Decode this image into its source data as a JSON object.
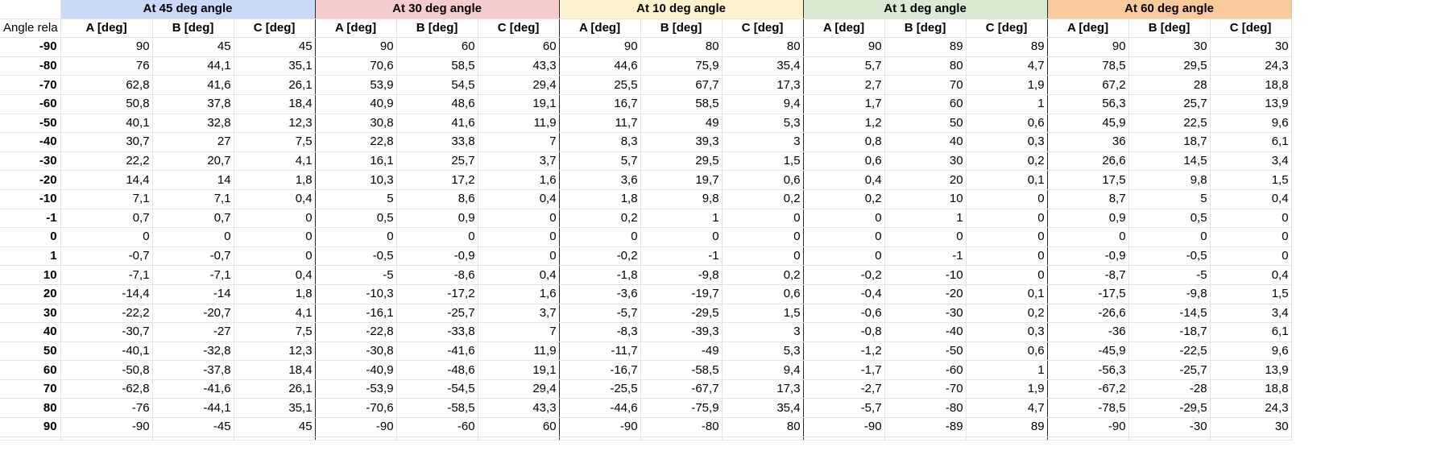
{
  "corner_label": "Angle rela",
  "groups": [
    {
      "title": "At 45 deg angle",
      "color": "#c9daf8"
    },
    {
      "title": "At 30 deg angle",
      "color": "#f4cccc"
    },
    {
      "title": "At 10 deg angle",
      "color": "#fff2cc"
    },
    {
      "title": "At 1 deg angle",
      "color": "#d9ead3"
    },
    {
      "title": "At 60 deg angle",
      "color": "#f9cb9c"
    }
  ],
  "column_labels": [
    "A [deg]",
    "B [deg]",
    "C [deg]"
  ],
  "rows": [
    {
      "angle": "-90",
      "values": [
        [
          "90",
          "45",
          "45"
        ],
        [
          "90",
          "60",
          "60"
        ],
        [
          "90",
          "80",
          "80"
        ],
        [
          "90",
          "89",
          "89"
        ],
        [
          "90",
          "30",
          "30"
        ]
      ]
    },
    {
      "angle": "-80",
      "values": [
        [
          "76",
          "44,1",
          "35,1"
        ],
        [
          "70,6",
          "58,5",
          "43,3"
        ],
        [
          "44,6",
          "75,9",
          "35,4"
        ],
        [
          "5,7",
          "80",
          "4,7"
        ],
        [
          "78,5",
          "29,5",
          "24,3"
        ]
      ]
    },
    {
      "angle": "-70",
      "values": [
        [
          "62,8",
          "41,6",
          "26,1"
        ],
        [
          "53,9",
          "54,5",
          "29,4"
        ],
        [
          "25,5",
          "67,7",
          "17,3"
        ],
        [
          "2,7",
          "70",
          "1,9"
        ],
        [
          "67,2",
          "28",
          "18,8"
        ]
      ]
    },
    {
      "angle": "-60",
      "values": [
        [
          "50,8",
          "37,8",
          "18,4"
        ],
        [
          "40,9",
          "48,6",
          "19,1"
        ],
        [
          "16,7",
          "58,5",
          "9,4"
        ],
        [
          "1,7",
          "60",
          "1"
        ],
        [
          "56,3",
          "25,7",
          "13,9"
        ]
      ]
    },
    {
      "angle": "-50",
      "values": [
        [
          "40,1",
          "32,8",
          "12,3"
        ],
        [
          "30,8",
          "41,6",
          "11,9"
        ],
        [
          "11,7",
          "49",
          "5,3"
        ],
        [
          "1,2",
          "50",
          "0,6"
        ],
        [
          "45,9",
          "22,5",
          "9,6"
        ]
      ]
    },
    {
      "angle": "-40",
      "values": [
        [
          "30,7",
          "27",
          "7,5"
        ],
        [
          "22,8",
          "33,8",
          "7"
        ],
        [
          "8,3",
          "39,3",
          "3"
        ],
        [
          "0,8",
          "40",
          "0,3"
        ],
        [
          "36",
          "18,7",
          "6,1"
        ]
      ]
    },
    {
      "angle": "-30",
      "values": [
        [
          "22,2",
          "20,7",
          "4,1"
        ],
        [
          "16,1",
          "25,7",
          "3,7"
        ],
        [
          "5,7",
          "29,5",
          "1,5"
        ],
        [
          "0,6",
          "30",
          "0,2"
        ],
        [
          "26,6",
          "14,5",
          "3,4"
        ]
      ]
    },
    {
      "angle": "-20",
      "values": [
        [
          "14,4",
          "14",
          "1,8"
        ],
        [
          "10,3",
          "17,2",
          "1,6"
        ],
        [
          "3,6",
          "19,7",
          "0,6"
        ],
        [
          "0,4",
          "20",
          "0,1"
        ],
        [
          "17,5",
          "9,8",
          "1,5"
        ]
      ]
    },
    {
      "angle": "-10",
      "values": [
        [
          "7,1",
          "7,1",
          "0,4"
        ],
        [
          "5",
          "8,6",
          "0,4"
        ],
        [
          "1,8",
          "9,8",
          "0,2"
        ],
        [
          "0,2",
          "10",
          "0"
        ],
        [
          "8,7",
          "5",
          "0,4"
        ]
      ]
    },
    {
      "angle": "-1",
      "values": [
        [
          "0,7",
          "0,7",
          "0"
        ],
        [
          "0,5",
          "0,9",
          "0"
        ],
        [
          "0,2",
          "1",
          "0"
        ],
        [
          "0",
          "1",
          "0"
        ],
        [
          "0,9",
          "0,5",
          "0"
        ]
      ]
    },
    {
      "angle": "0",
      "values": [
        [
          "0",
          "0",
          "0"
        ],
        [
          "0",
          "0",
          "0"
        ],
        [
          "0",
          "0",
          "0"
        ],
        [
          "0",
          "0",
          "0"
        ],
        [
          "0",
          "0",
          "0"
        ]
      ]
    },
    {
      "angle": "1",
      "values": [
        [
          "-0,7",
          "-0,7",
          "0"
        ],
        [
          "-0,5",
          "-0,9",
          "0"
        ],
        [
          "-0,2",
          "-1",
          "0"
        ],
        [
          "0",
          "-1",
          "0"
        ],
        [
          "-0,9",
          "-0,5",
          "0"
        ]
      ]
    },
    {
      "angle": "10",
      "values": [
        [
          "-7,1",
          "-7,1",
          "0,4"
        ],
        [
          "-5",
          "-8,6",
          "0,4"
        ],
        [
          "-1,8",
          "-9,8",
          "0,2"
        ],
        [
          "-0,2",
          "-10",
          "0"
        ],
        [
          "-8,7",
          "-5",
          "0,4"
        ]
      ]
    },
    {
      "angle": "20",
      "values": [
        [
          "-14,4",
          "-14",
          "1,8"
        ],
        [
          "-10,3",
          "-17,2",
          "1,6"
        ],
        [
          "-3,6",
          "-19,7",
          "0,6"
        ],
        [
          "-0,4",
          "-20",
          "0,1"
        ],
        [
          "-17,5",
          "-9,8",
          "1,5"
        ]
      ]
    },
    {
      "angle": "30",
      "values": [
        [
          "-22,2",
          "-20,7",
          "4,1"
        ],
        [
          "-16,1",
          "-25,7",
          "3,7"
        ],
        [
          "-5,7",
          "-29,5",
          "1,5"
        ],
        [
          "-0,6",
          "-30",
          "0,2"
        ],
        [
          "-26,6",
          "-14,5",
          "3,4"
        ]
      ]
    },
    {
      "angle": "40",
      "values": [
        [
          "-30,7",
          "-27",
          "7,5"
        ],
        [
          "-22,8",
          "-33,8",
          "7"
        ],
        [
          "-8,3",
          "-39,3",
          "3"
        ],
        [
          "-0,8",
          "-40",
          "0,3"
        ],
        [
          "-36",
          "-18,7",
          "6,1"
        ]
      ]
    },
    {
      "angle": "50",
      "values": [
        [
          "-40,1",
          "-32,8",
          "12,3"
        ],
        [
          "-30,8",
          "-41,6",
          "11,9"
        ],
        [
          "-11,7",
          "-49",
          "5,3"
        ],
        [
          "-1,2",
          "-50",
          "0,6"
        ],
        [
          "-45,9",
          "-22,5",
          "9,6"
        ]
      ]
    },
    {
      "angle": "60",
      "values": [
        [
          "-50,8",
          "-37,8",
          "18,4"
        ],
        [
          "-40,9",
          "-48,6",
          "19,1"
        ],
        [
          "-16,7",
          "-58,5",
          "9,4"
        ],
        [
          "-1,7",
          "-60",
          "1"
        ],
        [
          "-56,3",
          "-25,7",
          "13,9"
        ]
      ]
    },
    {
      "angle": "70",
      "values": [
        [
          "-62,8",
          "-41,6",
          "26,1"
        ],
        [
          "-53,9",
          "-54,5",
          "29,4"
        ],
        [
          "-25,5",
          "-67,7",
          "17,3"
        ],
        [
          "-2,7",
          "-70",
          "1,9"
        ],
        [
          "-67,2",
          "-28",
          "18,8"
        ]
      ]
    },
    {
      "angle": "80",
      "values": [
        [
          "-76",
          "-44,1",
          "35,1"
        ],
        [
          "-70,6",
          "-58,5",
          "43,3"
        ],
        [
          "-44,6",
          "-75,9",
          "35,4"
        ],
        [
          "-5,7",
          "-80",
          "4,7"
        ],
        [
          "-78,5",
          "-29,5",
          "24,3"
        ]
      ]
    },
    {
      "angle": "90",
      "values": [
        [
          "-90",
          "-45",
          "45"
        ],
        [
          "-90",
          "-60",
          "60"
        ],
        [
          "-90",
          "-80",
          "80"
        ],
        [
          "-90",
          "-89",
          "89"
        ],
        [
          "-90",
          "-30",
          "30"
        ]
      ]
    }
  ]
}
